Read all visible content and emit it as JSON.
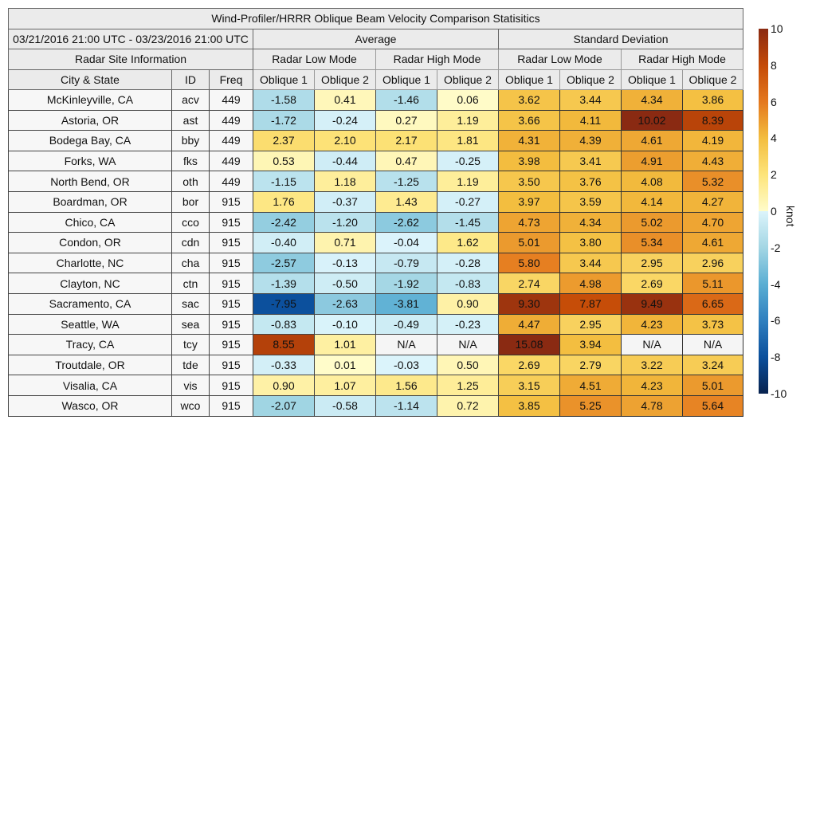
{
  "chart_data": {
    "type": "heatmap",
    "title": "Wind-Profiler/HRRR Oblique Beam Velocity Comparison Statisitics",
    "date_range": "03/21/2016 21:00 UTC - 03/23/2016 21:00 UTC",
    "groups": [
      "Average",
      "Standard Deviation"
    ],
    "site_info_label": "Radar Site Information",
    "modes": [
      "Radar Low Mode",
      "Radar High Mode",
      "Radar Low Mode",
      "Radar High Mode"
    ],
    "columns": [
      "City & State",
      "ID",
      "Freq",
      "Oblique 1",
      "Oblique 2",
      "Oblique 1",
      "Oblique 2",
      "Oblique 1",
      "Oblique 2",
      "Oblique 1",
      "Oblique 2"
    ],
    "rows": [
      {
        "city": "McKinleyville, CA",
        "id": "acv",
        "freq": "449",
        "values": [
          "-1.58",
          "0.41",
          "-1.46",
          "0.06",
          "3.62",
          "3.44",
          "4.34",
          "3.86"
        ]
      },
      {
        "city": "Astoria, OR",
        "id": "ast",
        "freq": "449",
        "values": [
          "-1.72",
          "-0.24",
          "0.27",
          "1.19",
          "3.66",
          "4.11",
          "10.02",
          "8.39"
        ]
      },
      {
        "city": "Bodega Bay, CA",
        "id": "bby",
        "freq": "449",
        "values": [
          "2.37",
          "2.10",
          "2.17",
          "1.81",
          "4.31",
          "4.39",
          "4.61",
          "4.19"
        ]
      },
      {
        "city": "Forks, WA",
        "id": "fks",
        "freq": "449",
        "values": [
          "0.53",
          "-0.44",
          "0.47",
          "-0.25",
          "3.98",
          "3.41",
          "4.91",
          "4.43"
        ]
      },
      {
        "city": "North Bend, OR",
        "id": "oth",
        "freq": "449",
        "values": [
          "-1.15",
          "1.18",
          "-1.25",
          "1.19",
          "3.50",
          "3.76",
          "4.08",
          "5.32"
        ]
      },
      {
        "city": "Boardman, OR",
        "id": "bor",
        "freq": "915",
        "values": [
          "1.76",
          "-0.37",
          "1.43",
          "-0.27",
          "3.97",
          "3.59",
          "4.14",
          "4.27"
        ]
      },
      {
        "city": "Chico, CA",
        "id": "cco",
        "freq": "915",
        "values": [
          "-2.42",
          "-1.20",
          "-2.62",
          "-1.45",
          "4.73",
          "4.34",
          "5.02",
          "4.70"
        ]
      },
      {
        "city": "Condon, OR",
        "id": "cdn",
        "freq": "915",
        "values": [
          "-0.40",
          "0.71",
          "-0.04",
          "1.62",
          "5.01",
          "3.80",
          "5.34",
          "4.61"
        ]
      },
      {
        "city": "Charlotte, NC",
        "id": "cha",
        "freq": "915",
        "values": [
          "-2.57",
          "-0.13",
          "-0.79",
          "-0.28",
          "5.80",
          "3.44",
          "2.95",
          "2.96"
        ]
      },
      {
        "city": "Clayton, NC",
        "id": "ctn",
        "freq": "915",
        "values": [
          "-1.39",
          "-0.50",
          "-1.92",
          "-0.83",
          "2.74",
          "4.98",
          "2.69",
          "5.11"
        ]
      },
      {
        "city": "Sacramento, CA",
        "id": "sac",
        "freq": "915",
        "values": [
          "-7.95",
          "-2.63",
          "-3.81",
          "0.90",
          "9.30",
          "7.87",
          "9.49",
          "6.65"
        ]
      },
      {
        "city": "Seattle, WA",
        "id": "sea",
        "freq": "915",
        "values": [
          "-0.83",
          "-0.10",
          "-0.49",
          "-0.23",
          "4.47",
          "2.95",
          "4.23",
          "3.73"
        ]
      },
      {
        "city": "Tracy, CA",
        "id": "tcy",
        "freq": "915",
        "values": [
          "8.55",
          "1.01",
          "N/A",
          "N/A",
          "15.08",
          "3.94",
          "N/A",
          "N/A"
        ]
      },
      {
        "city": "Troutdale, OR",
        "id": "tde",
        "freq": "915",
        "values": [
          "-0.33",
          "0.01",
          "-0.03",
          "0.50",
          "2.69",
          "2.79",
          "3.22",
          "3.24"
        ]
      },
      {
        "city": "Visalia, CA",
        "id": "vis",
        "freq": "915",
        "values": [
          "0.90",
          "1.07",
          "1.56",
          "1.25",
          "3.15",
          "4.51",
          "4.23",
          "5.01"
        ]
      },
      {
        "city": "Wasco, OR",
        "id": "wco",
        "freq": "915",
        "values": [
          "-2.07",
          "-0.58",
          "-1.14",
          "0.72",
          "3.85",
          "5.25",
          "4.78",
          "5.64"
        ]
      }
    ],
    "colorbar": {
      "label": "knot",
      "range": [
        -10,
        10
      ],
      "ticks": [
        "10",
        "8",
        "6",
        "4",
        "2",
        "0",
        "-2",
        "-4",
        "-6",
        "-8",
        "-10"
      ]
    },
    "na_color": "#f5f5f5",
    "color_stops": [
      [
        -10,
        "#08234f"
      ],
      [
        -8,
        "#0b4f9c"
      ],
      [
        -6,
        "#2f7fbf"
      ],
      [
        -4,
        "#5aaed3"
      ],
      [
        -2,
        "#a3d6e4"
      ],
      [
        -0.001,
        "#dcf4fb"
      ],
      [
        0,
        "#fffcca"
      ],
      [
        2,
        "#fde47a"
      ],
      [
        4,
        "#f3bd3e"
      ],
      [
        6,
        "#e4781e"
      ],
      [
        8,
        "#c44a07"
      ],
      [
        10,
        "#8a2a12"
      ]
    ]
  }
}
